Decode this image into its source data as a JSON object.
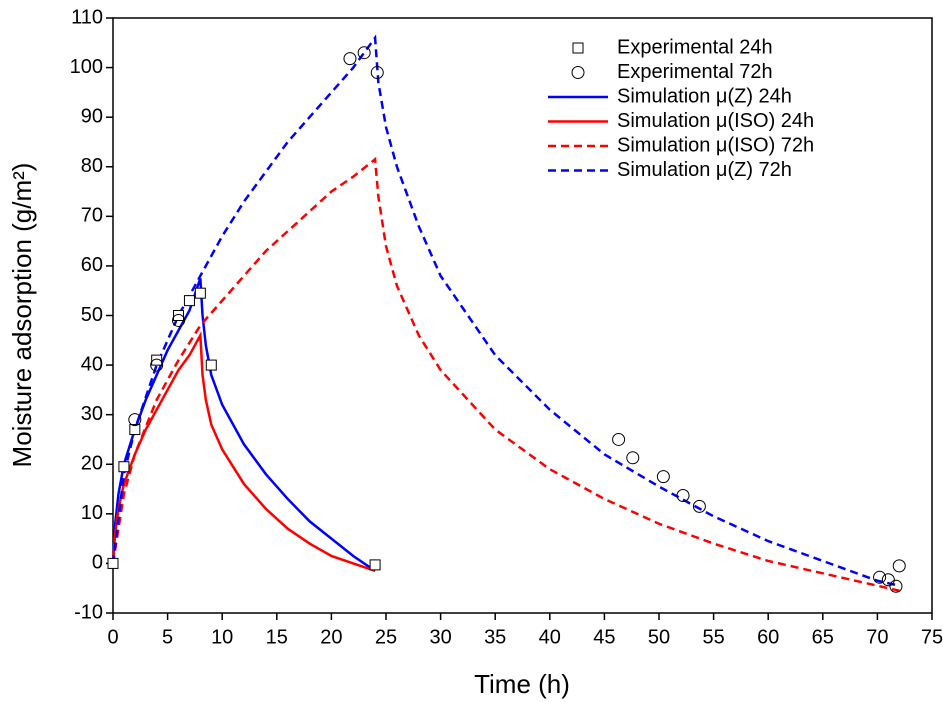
{
  "chart_data": {
    "type": "line",
    "x_label": "Time (h)",
    "y_label": "Moisture adsorption (g/m²)",
    "xlim": [
      0,
      75
    ],
    "ylim": [
      -10,
      110
    ],
    "xticks": [
      0,
      5,
      10,
      15,
      20,
      25,
      30,
      35,
      40,
      45,
      50,
      55,
      60,
      65,
      70,
      75
    ],
    "yticks": [
      -10,
      0,
      10,
      20,
      30,
      40,
      50,
      60,
      70,
      80,
      90,
      100,
      110
    ],
    "legend": "upper right",
    "series": [
      {
        "name": "Experimental 24h",
        "mode": "marker",
        "marker": "square",
        "color": "#000000",
        "x": [
          0,
          1,
          2,
          4,
          6,
          7,
          8,
          9,
          24
        ],
        "values": [
          0,
          19.5,
          27,
          41,
          50,
          53,
          54.5,
          40,
          -0.3
        ]
      },
      {
        "name": "Experimental 72h",
        "mode": "marker",
        "marker": "circle",
        "color": "#000000",
        "x": [
          2,
          4,
          6,
          21.7,
          23,
          24.2,
          46.3,
          47.6,
          50.4,
          52.2,
          53.7,
          70.2,
          71,
          71.7,
          72
        ],
        "values": [
          29,
          40,
          49,
          101.8,
          103,
          99,
          25,
          21.3,
          17.5,
          13.7,
          11.5,
          -2.8,
          -3.3,
          -4.6,
          -0.5
        ]
      },
      {
        "name": "Simulation μ(Z) 24h",
        "mode": "line",
        "dash": false,
        "color": "#0000ff",
        "x": [
          0,
          0.2,
          0.5,
          1,
          2,
          3,
          4,
          5,
          6,
          7,
          8,
          8.2,
          8.5,
          9,
          10,
          12,
          14,
          16,
          18,
          20,
          22,
          24
        ],
        "values": [
          0,
          8,
          14,
          20,
          27,
          33,
          38,
          43,
          47,
          51,
          57.5,
          50,
          44,
          38,
          32,
          24,
          18,
          13,
          8.5,
          5,
          1.5,
          -1.5
        ]
      },
      {
        "name": "Simulation μ(ISO) 24h",
        "mode": "line",
        "dash": false,
        "color": "#ff0000",
        "x": [
          0,
          0.2,
          0.5,
          1,
          2,
          3,
          4,
          5,
          6,
          7,
          8,
          8.2,
          8.5,
          9,
          10,
          12,
          14,
          16,
          18,
          20,
          22,
          24
        ],
        "values": [
          0,
          6,
          11,
          16,
          22,
          27,
          31,
          35,
          39,
          42,
          46,
          38,
          33,
          28,
          23,
          16,
          11,
          7,
          4,
          1.5,
          0,
          -1.5
        ]
      },
      {
        "name": "Simulation μ(ISO) 72h",
        "mode": "line",
        "dash": true,
        "color": "#ff0000",
        "x": [
          0,
          1,
          2,
          4,
          6,
          8,
          10,
          12,
          14,
          16,
          18,
          20,
          22,
          24,
          24.3,
          25,
          26,
          28,
          30,
          35,
          40,
          45,
          50,
          55,
          60,
          65,
          70,
          72
        ],
        "values": [
          0,
          14,
          22,
          33,
          41,
          48,
          53,
          58,
          63,
          67,
          71,
          75,
          78,
          81.5,
          74,
          64,
          56,
          46,
          39,
          27,
          19,
          13,
          8,
          4,
          0.5,
          -2,
          -4.5,
          -5.5
        ]
      },
      {
        "name": "Simulation μ(Z) 72h",
        "mode": "line",
        "dash": true,
        "color": "#0000ff",
        "x": [
          0,
          1,
          2,
          4,
          6,
          8,
          10,
          12,
          14,
          16,
          18,
          20,
          22,
          24,
          24.3,
          25,
          26,
          28,
          30,
          35,
          40,
          45,
          50,
          55,
          60,
          65,
          70,
          72
        ],
        "values": [
          0,
          18,
          27,
          40,
          50,
          58,
          66,
          73,
          79,
          85,
          90,
          95,
          100,
          106,
          97,
          88,
          80,
          68,
          58,
          42,
          31,
          22,
          15.5,
          9.5,
          4.5,
          0.5,
          -3.5,
          -4.5
        ]
      }
    ]
  }
}
